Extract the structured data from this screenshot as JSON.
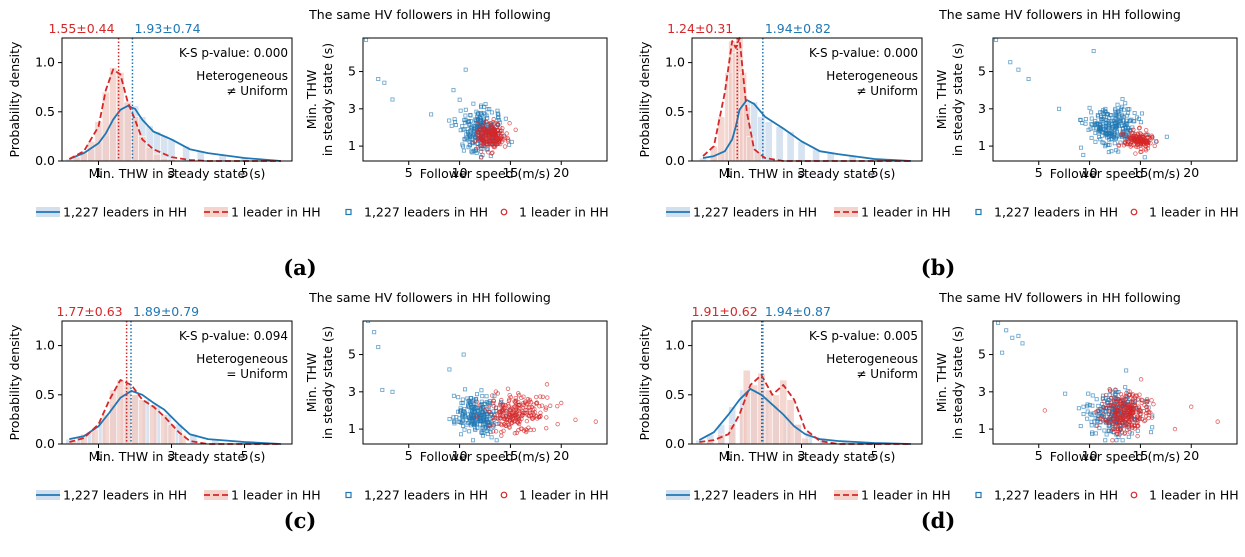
{
  "colors": {
    "blue": "#1f77b4",
    "red": "#d62728",
    "blue_fill": "#c6d7ea",
    "red_fill": "#f1c9c1"
  },
  "common": {
    "title": "The same HV followers in HH following",
    "ks_prefix": "K-S p-value: ",
    "hist_xlabel": "Min. THW in steady state (s)",
    "hist_ylabel": "Probability density",
    "scatter_xlabel": "Follower speed (m/s)",
    "scatter_ylabel_line1": "Min. THW",
    "scatter_ylabel_line2": "in steady state (s)",
    "hist_xticks": [
      "1",
      "3",
      "5"
    ],
    "hist_yticks": [
      "0.0",
      "0.5",
      "1.0"
    ],
    "scatter_xticks": [
      "5",
      "10",
      "15",
      "20"
    ],
    "scatter_yticks": [
      "1",
      "3",
      "5"
    ],
    "legend": {
      "blue_line": "1,227 leaders in HH",
      "red_line": "1 leader in HH",
      "blue_marker": "1,227 leaders in HH",
      "red_marker": "1 leader in HH"
    },
    "heterogeneous": "Heterogeneous"
  },
  "chart_data": [
    {
      "panel": "(a)",
      "type": "line",
      "red_stat": "1.55±0.44",
      "blue_stat": "1.93±0.74",
      "ks_value": "0.000",
      "relation": "≠ Uniform",
      "means": {
        "red": 1.55,
        "blue": 1.93
      },
      "hist_xlim": [
        0,
        6.3
      ],
      "hist_ylim": [
        0,
        1.25
      ],
      "x": [
        0.2,
        0.6,
        1.0,
        1.2,
        1.4,
        1.6,
        1.8,
        2.0,
        2.2,
        2.5,
        3.0,
        3.5,
        4.0,
        5.0,
        6.0
      ],
      "series": [
        {
          "name": "1,227 leaders in HH",
          "values": [
            0.02,
            0.08,
            0.18,
            0.28,
            0.42,
            0.52,
            0.56,
            0.53,
            0.42,
            0.3,
            0.22,
            0.12,
            0.08,
            0.03,
            0.0
          ]
        },
        {
          "name": "1 leader in HH",
          "values": [
            0.02,
            0.1,
            0.35,
            0.72,
            0.93,
            0.88,
            0.6,
            0.42,
            0.22,
            0.12,
            0.04,
            0.01,
            0.0,
            0.0,
            0.0
          ]
        }
      ],
      "hist_bars": {
        "blue": [
          [
            0.2,
            0.02
          ],
          [
            0.4,
            0.04
          ],
          [
            0.6,
            0.08
          ],
          [
            0.8,
            0.12
          ],
          [
            1.0,
            0.18
          ],
          [
            1.2,
            0.26
          ],
          [
            1.4,
            0.4
          ],
          [
            1.6,
            0.52
          ],
          [
            1.8,
            0.6
          ],
          [
            2.0,
            0.56
          ],
          [
            2.2,
            0.45
          ],
          [
            2.4,
            0.36
          ],
          [
            2.6,
            0.3
          ],
          [
            2.8,
            0.26
          ],
          [
            3.0,
            0.22
          ],
          [
            3.4,
            0.15
          ],
          [
            3.8,
            0.1
          ],
          [
            4.4,
            0.06
          ],
          [
            5.0,
            0.03
          ],
          [
            5.6,
            0.01
          ]
        ],
        "red": [
          [
            0.4,
            0.04
          ],
          [
            0.6,
            0.1
          ],
          [
            0.8,
            0.2
          ],
          [
            1.0,
            0.4
          ],
          [
            1.2,
            0.7
          ],
          [
            1.4,
            0.95
          ],
          [
            1.6,
            0.9
          ],
          [
            1.8,
            0.6
          ],
          [
            2.0,
            0.45
          ],
          [
            2.2,
            0.25
          ],
          [
            2.4,
            0.14
          ],
          [
            2.6,
            0.07
          ],
          [
            2.8,
            0.03
          ],
          [
            3.0,
            0.02
          ]
        ]
      },
      "scatter_xlim": [
        0.5,
        24.5
      ],
      "scatter_ylim": [
        0.2,
        6.8
      ],
      "scatter": {
        "blue": {
          "center": [
            12.0,
            1.8
          ],
          "spread": [
            1.6,
            0.55
          ],
          "n": 240
        },
        "red": {
          "center": [
            13.2,
            1.55
          ],
          "spread": [
            1.0,
            0.35
          ],
          "n": 180
        },
        "blue_outliers": [
          [
            0.8,
            6.7
          ],
          [
            2.0,
            4.6
          ],
          [
            2.6,
            4.4
          ],
          [
            3.4,
            3.5
          ],
          [
            7.2,
            2.7
          ],
          [
            9.4,
            4.0
          ],
          [
            10.6,
            5.1
          ]
        ]
      }
    },
    {
      "panel": "(b)",
      "type": "line",
      "red_stat": "1.24±0.31",
      "blue_stat": "1.94±0.82",
      "ks_value": "0.000",
      "relation": "≠ Uniform",
      "means": {
        "red": 1.24,
        "blue": 1.94
      },
      "hist_xlim": [
        0,
        6.3
      ],
      "hist_ylim": [
        0,
        1.25
      ],
      "x": [
        0.3,
        0.6,
        0.9,
        1.1,
        1.2,
        1.3,
        1.5,
        1.7,
        2.0,
        2.5,
        3.0,
        3.5,
        4.0,
        5.0,
        6.0
      ],
      "series": [
        {
          "name": "1,227 leaders in HH",
          "values": [
            0.03,
            0.05,
            0.1,
            0.22,
            0.35,
            0.52,
            0.62,
            0.58,
            0.45,
            0.33,
            0.2,
            0.1,
            0.07,
            0.02,
            0.0
          ]
        },
        {
          "name": "1 leader in HH",
          "values": [
            0.05,
            0.15,
            0.7,
            1.22,
            1.15,
            1.25,
            0.5,
            0.12,
            0.03,
            0.0,
            0.0,
            0.0,
            0.0,
            0.0,
            0.0
          ]
        }
      ],
      "hist_bars": {
        "blue": [
          [
            0.3,
            0.03
          ],
          [
            0.6,
            0.05
          ],
          [
            0.9,
            0.1
          ],
          [
            1.1,
            0.22
          ],
          [
            1.3,
            0.45
          ],
          [
            1.5,
            0.6
          ],
          [
            1.7,
            0.6
          ],
          [
            1.9,
            0.45
          ],
          [
            2.1,
            0.4
          ],
          [
            2.4,
            0.35
          ],
          [
            2.7,
            0.3
          ],
          [
            3.0,
            0.2
          ],
          [
            3.4,
            0.12
          ],
          [
            3.8,
            0.08
          ],
          [
            4.4,
            0.05
          ],
          [
            5.0,
            0.02
          ],
          [
            5.8,
            0.01
          ]
        ],
        "red": [
          [
            0.6,
            0.15
          ],
          [
            0.8,
            0.45
          ],
          [
            1.0,
            0.9
          ],
          [
            1.1,
            1.22
          ],
          [
            1.2,
            1.1
          ],
          [
            1.3,
            1.25
          ],
          [
            1.4,
            0.9
          ],
          [
            1.5,
            0.55
          ],
          [
            1.6,
            0.25
          ],
          [
            1.8,
            0.1
          ]
        ]
      },
      "scatter_xlim": [
        0.5,
        24.5
      ],
      "scatter_ylim": [
        0.2,
        6.8
      ],
      "scatter": {
        "blue": {
          "center": [
            12.2,
            2.0
          ],
          "spread": [
            1.8,
            0.55
          ],
          "n": 240
        },
        "red": {
          "center": [
            14.8,
            1.3
          ],
          "spread": [
            1.0,
            0.25
          ],
          "n": 150
        },
        "blue_outliers": [
          [
            0.8,
            6.7
          ],
          [
            2.2,
            5.5
          ],
          [
            3.0,
            5.1
          ],
          [
            4.0,
            4.6
          ],
          [
            10.4,
            6.1
          ],
          [
            7.0,
            3.0
          ],
          [
            9.6,
            2.2
          ]
        ]
      }
    },
    {
      "panel": "(c)",
      "type": "line",
      "red_stat": "1.77±0.63",
      "blue_stat": "1.89±0.79",
      "ks_value": "0.094",
      "relation": "= Uniform",
      "means": {
        "red": 1.77,
        "blue": 1.89
      },
      "hist_xlim": [
        0,
        6.3
      ],
      "hist_ylim": [
        0,
        1.25
      ],
      "x": [
        0.2,
        0.6,
        1.0,
        1.3,
        1.6,
        1.9,
        2.2,
        2.5,
        2.8,
        3.2,
        3.5,
        4.0,
        5.0,
        6.0
      ],
      "series": [
        {
          "name": "1,227 leaders in HH",
          "values": [
            0.05,
            0.08,
            0.18,
            0.32,
            0.47,
            0.54,
            0.5,
            0.42,
            0.35,
            0.2,
            0.1,
            0.05,
            0.02,
            0.0
          ]
        },
        {
          "name": "1 leader in HH",
          "values": [
            0.02,
            0.06,
            0.2,
            0.45,
            0.65,
            0.6,
            0.45,
            0.38,
            0.28,
            0.12,
            0.03,
            0.0,
            0.0,
            0.0
          ]
        }
      ],
      "hist_bars": {
        "blue": [
          [
            0.2,
            0.05
          ],
          [
            0.5,
            0.07
          ],
          [
            0.8,
            0.12
          ],
          [
            1.1,
            0.22
          ],
          [
            1.4,
            0.4
          ],
          [
            1.7,
            0.52
          ],
          [
            2.0,
            0.5
          ],
          [
            2.3,
            0.45
          ],
          [
            2.6,
            0.38
          ],
          [
            2.9,
            0.3
          ],
          [
            3.2,
            0.2
          ],
          [
            3.6,
            0.1
          ],
          [
            4.2,
            0.05
          ],
          [
            5.0,
            0.02
          ]
        ],
        "red": [
          [
            0.3,
            0.04
          ],
          [
            0.6,
            0.1
          ],
          [
            0.9,
            0.15
          ],
          [
            1.2,
            0.3
          ],
          [
            1.4,
            0.55
          ],
          [
            1.6,
            0.65
          ],
          [
            1.8,
            0.6
          ],
          [
            2.0,
            0.5
          ],
          [
            2.2,
            0.45
          ],
          [
            2.5,
            0.4
          ],
          [
            2.8,
            0.3
          ],
          [
            3.0,
            0.2
          ],
          [
            3.3,
            0.1
          ]
        ]
      },
      "scatter_xlim": [
        0.5,
        24.5
      ],
      "scatter_ylim": [
        0.2,
        6.8
      ],
      "scatter": {
        "blue": {
          "center": [
            11.8,
            1.75
          ],
          "spread": [
            1.5,
            0.5
          ],
          "n": 230
        },
        "red": {
          "center": [
            15.5,
            1.85
          ],
          "spread": [
            2.2,
            0.5
          ],
          "n": 220
        },
        "blue_outliers": [
          [
            1.0,
            6.8
          ],
          [
            1.6,
            6.2
          ],
          [
            2.0,
            5.4
          ],
          [
            2.4,
            3.1
          ],
          [
            3.4,
            3.0
          ],
          [
            9.0,
            4.2
          ],
          [
            10.4,
            5.0
          ]
        ],
        "red_outliers": [
          [
            23.4,
            1.4
          ],
          [
            21.4,
            1.5
          ],
          [
            18.6,
            3.4
          ],
          [
            20.0,
            2.4
          ]
        ]
      }
    },
    {
      "panel": "(d)",
      "type": "line",
      "red_stat": "1.91±0.62",
      "blue_stat": "1.94±0.87",
      "ks_value": "0.005",
      "relation": "≠ Uniform",
      "means": {
        "red": 1.91,
        "blue": 1.94
      },
      "hist_xlim": [
        0,
        6.3
      ],
      "hist_ylim": [
        0,
        1.25
      ],
      "x": [
        0.2,
        0.6,
        1.0,
        1.3,
        1.6,
        1.9,
        2.2,
        2.5,
        2.8,
        3.1,
        3.5,
        4.0,
        5.0,
        6.0
      ],
      "series": [
        {
          "name": "1,227 leaders in HH",
          "values": [
            0.04,
            0.12,
            0.3,
            0.45,
            0.56,
            0.5,
            0.4,
            0.3,
            0.18,
            0.1,
            0.05,
            0.03,
            0.01,
            0.0
          ]
        },
        {
          "name": "1 leader in HH",
          "values": [
            0.02,
            0.04,
            0.1,
            0.3,
            0.6,
            0.7,
            0.5,
            0.6,
            0.45,
            0.15,
            0.03,
            0.0,
            0.0,
            0.0
          ]
        }
      ],
      "hist_bars": {
        "blue": [
          [
            0.2,
            0.04
          ],
          [
            0.5,
            0.1
          ],
          [
            0.8,
            0.2
          ],
          [
            1.1,
            0.38
          ],
          [
            1.4,
            0.55
          ],
          [
            1.7,
            0.55
          ],
          [
            2.0,
            0.48
          ],
          [
            2.3,
            0.4
          ],
          [
            2.6,
            0.3
          ],
          [
            2.9,
            0.2
          ],
          [
            3.2,
            0.12
          ],
          [
            3.6,
            0.06
          ],
          [
            4.2,
            0.03
          ],
          [
            5.0,
            0.01
          ]
        ],
        "red": [
          [
            0.5,
            0.03
          ],
          [
            0.8,
            0.1
          ],
          [
            1.1,
            0.2
          ],
          [
            1.4,
            0.35
          ],
          [
            1.5,
            0.75
          ],
          [
            1.7,
            0.6
          ],
          [
            1.9,
            0.72
          ],
          [
            2.1,
            0.55
          ],
          [
            2.3,
            0.5
          ],
          [
            2.5,
            0.65
          ],
          [
            2.7,
            0.45
          ],
          [
            2.9,
            0.2
          ],
          [
            3.1,
            0.06
          ]
        ]
      },
      "scatter_xlim": [
        0.5,
        24.5
      ],
      "scatter_ylim": [
        0.2,
        6.8
      ],
      "scatter": {
        "blue": {
          "center": [
            12.5,
            1.85
          ],
          "spread": [
            1.8,
            0.6
          ],
          "n": 230
        },
        "red": {
          "center": [
            13.5,
            1.85
          ],
          "spread": [
            1.6,
            0.55
          ],
          "n": 260
        },
        "blue_outliers": [
          [
            1.0,
            6.7
          ],
          [
            1.8,
            6.3
          ],
          [
            2.4,
            5.9
          ],
          [
            3.4,
            5.6
          ],
          [
            1.4,
            5.1
          ],
          [
            3.0,
            6.0
          ],
          [
            7.6,
            2.9
          ],
          [
            9.4,
            2.2
          ]
        ],
        "red_outliers": [
          [
            22.6,
            1.4
          ],
          [
            20.0,
            2.2
          ],
          [
            18.4,
            1.0
          ],
          [
            5.6,
            2.0
          ]
        ]
      }
    }
  ]
}
